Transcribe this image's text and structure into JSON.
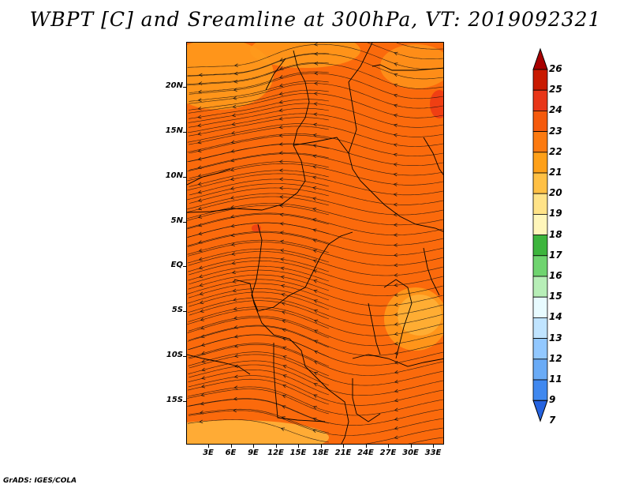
{
  "title": "WBPT [C] and Sreamline at 300hPa, VT: 2019092321",
  "footer": "GrADS: IGES/COLA",
  "map": {
    "lat_labels": [
      "20N",
      "15N",
      "10N",
      "5N",
      "EQ",
      "5S",
      "10S",
      "15S"
    ],
    "lon_labels": [
      "3E",
      "6E",
      "9E",
      "12E",
      "15E",
      "18E",
      "21E",
      "24E",
      "27E",
      "30E",
      "33E"
    ],
    "base_color": "#fb6a0c",
    "warm_patch_color": "#ff9a1c",
    "light_patch_color": "#ffb33a",
    "hot_patch_color": "#ee3b14"
  },
  "colorbar": {
    "labels": [
      "26",
      "25",
      "24",
      "23",
      "22",
      "21",
      "20",
      "19",
      "18",
      "17",
      "16",
      "15",
      "14",
      "13",
      "12",
      "11",
      "9",
      "7"
    ],
    "colors": [
      "#a80000",
      "#c91a00",
      "#e83618",
      "#f55a0c",
      "#fc7a10",
      "#fea018",
      "#ffc044",
      "#ffe388",
      "#fff6ba",
      "#3db53d",
      "#6fd46f",
      "#b7eeb7",
      "#e8fbff",
      "#c0e4ff",
      "#92c8ff",
      "#6aabf6",
      "#4088ef",
      "#2563e0"
    ]
  }
}
